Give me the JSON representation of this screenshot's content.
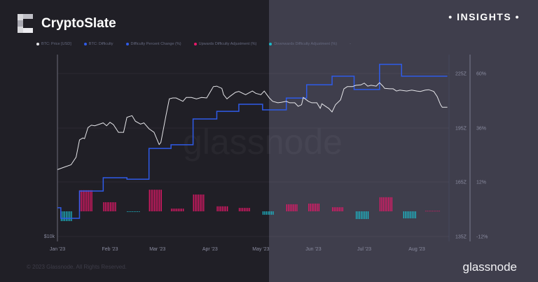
{
  "header": {
    "brand": "CryptoSlate",
    "badge": "INSIGHTS"
  },
  "footer": {
    "copyright": "© 2023 Glassnode. All Rights Reserved.",
    "logo": "glassnode"
  },
  "watermark": "glassnode",
  "colors": {
    "price": "#e6e6ea",
    "difficulty": "#2f5be8",
    "upward": "#e8186a",
    "downward": "#1cb8c8",
    "background_left": "#201f26",
    "background_right": "#3f3e4c"
  },
  "chart_data": {
    "type": "line",
    "legend": [
      {
        "name": "BTC: Price [USD]",
        "color": "#e6e6ea"
      },
      {
        "name": "BTC: Difficulty",
        "color": "#2f5be8"
      },
      {
        "name": "Difficulty Percent Change (%)",
        "color": "#2f5be8"
      },
      {
        "name": "Upwards Difficulty Adjustment (%)",
        "color": "#e8186a"
      },
      {
        "name": "Downwards Difficulty Adjustment (%)",
        "color": "#1cb8c8"
      }
    ],
    "legend_more": "-",
    "legend_placement": "top-left",
    "x_ticks": [
      "Jan '23",
      "Feb '23",
      "Mar '23",
      "Apr '23",
      "May '23",
      "Jun '23",
      "Jul '23",
      "Aug '23"
    ],
    "price_axis": {
      "scale": "log",
      "ticks": [
        "$10k"
      ]
    },
    "difficulty_axis": {
      "ticks": [
        "225Z",
        "195Z",
        "165Z",
        "135Z"
      ],
      "range": [
        135,
        225
      ]
    },
    "percent_axis": {
      "ticks": [
        "60%",
        "36%",
        "12%",
        "-12%"
      ],
      "range": [
        -12,
        60
      ]
    },
    "grid": true,
    "price": [
      [
        "2023-01-01",
        16.5
      ],
      [
        "2023-01-05",
        16.8
      ],
      [
        "2023-01-09",
        17.1
      ],
      [
        "2023-01-12",
        18.1
      ],
      [
        "2023-01-14",
        20.6
      ],
      [
        "2023-01-16",
        20.9
      ],
      [
        "2023-01-17",
        20.8
      ],
      [
        "2023-01-19",
        22.6
      ],
      [
        "2023-01-21",
        23.0
      ],
      [
        "2023-01-23",
        22.9
      ],
      [
        "2023-01-25",
        23.1
      ],
      [
        "2023-01-28",
        23.4
      ],
      [
        "2023-01-30",
        22.9
      ],
      [
        "2023-02-01",
        23.5
      ],
      [
        "2023-02-03",
        23.1
      ],
      [
        "2023-02-06",
        21.8
      ],
      [
        "2023-02-09",
        21.8
      ],
      [
        "2023-02-11",
        24.4
      ],
      [
        "2023-02-14",
        24.7
      ],
      [
        "2023-02-16",
        23.7
      ],
      [
        "2023-02-19",
        23.2
      ],
      [
        "2023-02-21",
        23.4
      ],
      [
        "2023-02-24",
        22.4
      ],
      [
        "2023-02-27",
        21.8
      ],
      [
        "2023-03-02",
        19.9
      ],
      [
        "2023-03-03",
        20.2
      ],
      [
        "2023-03-06",
        24.7
      ],
      [
        "2023-03-08",
        28.0
      ],
      [
        "2023-03-10",
        28.2
      ],
      [
        "2023-03-12",
        28.2
      ],
      [
        "2023-03-16",
        27.5
      ],
      [
        "2023-03-18",
        28.3
      ],
      [
        "2023-03-21",
        28.3
      ],
      [
        "2023-03-24",
        28.0
      ],
      [
        "2023-03-27",
        28.3
      ],
      [
        "2023-03-30",
        28.2
      ],
      [
        "2023-04-03",
        30.7
      ],
      [
        "2023-04-05",
        30.8
      ],
      [
        "2023-04-08",
        30.3
      ],
      [
        "2023-04-09",
        28.9
      ],
      [
        "2023-04-11",
        28.0
      ],
      [
        "2023-04-13",
        28.6
      ],
      [
        "2023-04-16",
        29.4
      ],
      [
        "2023-04-18",
        29.6
      ],
      [
        "2023-04-22",
        28.9
      ],
      [
        "2023-04-26",
        29.7
      ],
      [
        "2023-04-28",
        29.2
      ],
      [
        "2023-05-01",
        28.9
      ],
      [
        "2023-05-03",
        29.7
      ],
      [
        "2023-05-06",
        28.2
      ],
      [
        "2023-05-08",
        27.5
      ],
      [
        "2023-05-11",
        27.2
      ],
      [
        "2023-05-13",
        27.3
      ],
      [
        "2023-05-16",
        27.5
      ],
      [
        "2023-05-18",
        27.2
      ],
      [
        "2023-05-21",
        27.2
      ],
      [
        "2023-05-23",
        26.5
      ],
      [
        "2023-05-25",
        26.8
      ],
      [
        "2023-05-26",
        28.3
      ],
      [
        "2023-05-29",
        27.5
      ],
      [
        "2023-05-31",
        27.2
      ],
      [
        "2023-06-03",
        27.2
      ],
      [
        "2023-06-05",
        26.1
      ],
      [
        "2023-06-06",
        27.0
      ],
      [
        "2023-06-09",
        26.3
      ],
      [
        "2023-06-10",
        26.1
      ],
      [
        "2023-06-12",
        25.4
      ],
      [
        "2023-06-14",
        26.8
      ],
      [
        "2023-06-17",
        27.8
      ],
      [
        "2023-06-19",
        30.2
      ],
      [
        "2023-06-21",
        30.7
      ],
      [
        "2023-06-24",
        30.7
      ],
      [
        "2023-06-26",
        31.0
      ],
      [
        "2023-06-29",
        31.1
      ],
      [
        "2023-07-01",
        31.5
      ],
      [
        "2023-07-03",
        30.8
      ],
      [
        "2023-07-05",
        31.0
      ],
      [
        "2023-07-08",
        30.8
      ],
      [
        "2023-07-10",
        31.6
      ],
      [
        "2023-07-12",
        30.8
      ],
      [
        "2023-07-13",
        30.3
      ],
      [
        "2023-07-16",
        30.2
      ],
      [
        "2023-07-18",
        30.2
      ],
      [
        "2023-07-20",
        29.7
      ],
      [
        "2023-07-22",
        29.9
      ],
      [
        "2023-07-26",
        29.7
      ],
      [
        "2023-07-29",
        29.9
      ],
      [
        "2023-08-01",
        29.7
      ],
      [
        "2023-08-03",
        29.6
      ],
      [
        "2023-08-06",
        29.9
      ],
      [
        "2023-08-08",
        30.0
      ],
      [
        "2023-08-11",
        29.6
      ],
      [
        "2023-08-13",
        28.5
      ],
      [
        "2023-08-15",
        26.8
      ],
      [
        "2023-08-16",
        26.3
      ],
      [
        "2023-08-19",
        26.3
      ]
    ],
    "difficulty": [
      [
        "2023-01-01",
        151.2
      ],
      [
        "2023-01-03",
        145.4
      ],
      [
        "2023-01-14",
        160.4
      ],
      [
        "2023-01-28",
        167.7
      ],
      [
        "2023-02-11",
        166.9
      ],
      [
        "2023-02-24",
        183.8
      ],
      [
        "2023-03-09",
        185.8
      ],
      [
        "2023-03-22",
        200.0
      ],
      [
        "2023-04-05",
        204.2
      ],
      [
        "2023-04-18",
        208.1
      ],
      [
        "2023-05-02",
        205.0
      ],
      [
        "2023-05-16",
        211.5
      ],
      [
        "2023-05-28",
        218.8
      ],
      [
        "2023-06-12",
        223.5
      ],
      [
        "2023-06-25",
        216.2
      ],
      [
        "2023-07-10",
        230.0
      ],
      [
        "2023-07-23",
        223.5
      ],
      [
        "2023-08-19",
        223.5
      ]
    ],
    "adjustments": [
      {
        "start": "2023-01-03",
        "end": "2023-01-10",
        "pct": -4.3
      },
      {
        "start": "2023-01-14",
        "end": "2023-01-21",
        "pct": 9.3
      },
      {
        "start": "2023-01-28",
        "end": "2023-02-04",
        "pct": 4.0
      },
      {
        "start": "2023-02-11",
        "end": "2023-02-18",
        "pct": -0.3
      },
      {
        "start": "2023-02-24",
        "end": "2023-03-03",
        "pct": 9.5
      },
      {
        "start": "2023-03-09",
        "end": "2023-03-16",
        "pct": 1.2
      },
      {
        "start": "2023-03-22",
        "end": "2023-03-29",
        "pct": 7.4
      },
      {
        "start": "2023-04-05",
        "end": "2023-04-12",
        "pct": 2.2
      },
      {
        "start": "2023-04-18",
        "end": "2023-04-25",
        "pct": 1.5
      },
      {
        "start": "2023-05-02",
        "end": "2023-05-09",
        "pct": -1.5
      },
      {
        "start": "2023-05-16",
        "end": "2023-05-23",
        "pct": 3.1
      },
      {
        "start": "2023-05-29",
        "end": "2023-06-05",
        "pct": 3.4
      },
      {
        "start": "2023-06-12",
        "end": "2023-06-19",
        "pct": 1.8
      },
      {
        "start": "2023-06-26",
        "end": "2023-07-03",
        "pct": -3.4
      },
      {
        "start": "2023-07-10",
        "end": "2023-07-17",
        "pct": 6.2
      },
      {
        "start": "2023-07-24",
        "end": "2023-07-31",
        "pct": -3.1
      },
      {
        "start": "2023-08-06",
        "end": "2023-08-14",
        "pct": 0.2
      }
    ]
  }
}
